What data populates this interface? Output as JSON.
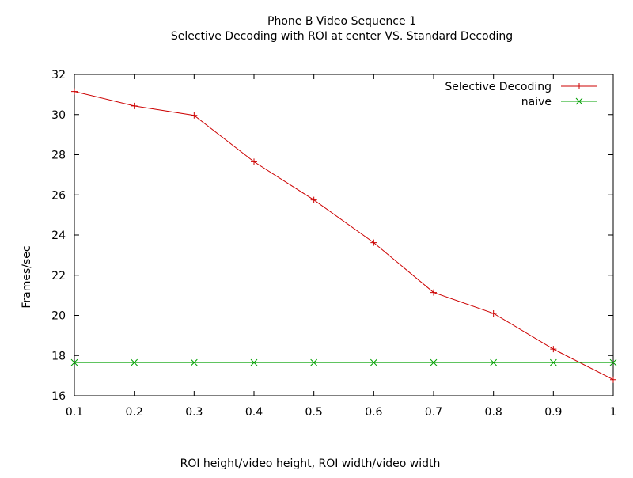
{
  "chart_data": {
    "type": "line",
    "title": "Phone B Video Sequence 1",
    "subtitle": "Selective Decoding with ROI at center VS. Standard Decoding",
    "xlabel": "ROI height/video height, ROI width/video width",
    "ylabel": "Frames/sec",
    "xlim": [
      0.1,
      1.0
    ],
    "ylim": [
      16,
      32
    ],
    "xticks": [
      "0.1",
      "0.2",
      "0.3",
      "0.4",
      "0.5",
      "0.6",
      "0.7",
      "0.8",
      "0.9",
      "1"
    ],
    "yticks": [
      "16",
      "18",
      "20",
      "22",
      "24",
      "26",
      "28",
      "30",
      "32"
    ],
    "grid": false,
    "legend_position": "top-right",
    "series": [
      {
        "name": "Selective Decoding",
        "color": "#cc0000",
        "marker": "plus",
        "x": [
          0.1,
          0.2,
          0.3,
          0.4,
          0.5,
          0.6,
          0.7,
          0.8,
          0.9,
          1.0
        ],
        "y": [
          31.15,
          30.43,
          29.96,
          27.65,
          25.75,
          23.62,
          21.14,
          20.1,
          18.32,
          16.8
        ]
      },
      {
        "name": "naive",
        "color": "#00a000",
        "marker": "cross",
        "x": [
          0.1,
          0.2,
          0.3,
          0.4,
          0.5,
          0.6,
          0.7,
          0.8,
          0.9,
          1.0
        ],
        "y": [
          17.65,
          17.65,
          17.65,
          17.65,
          17.65,
          17.65,
          17.65,
          17.65,
          17.65,
          17.65
        ]
      }
    ]
  }
}
